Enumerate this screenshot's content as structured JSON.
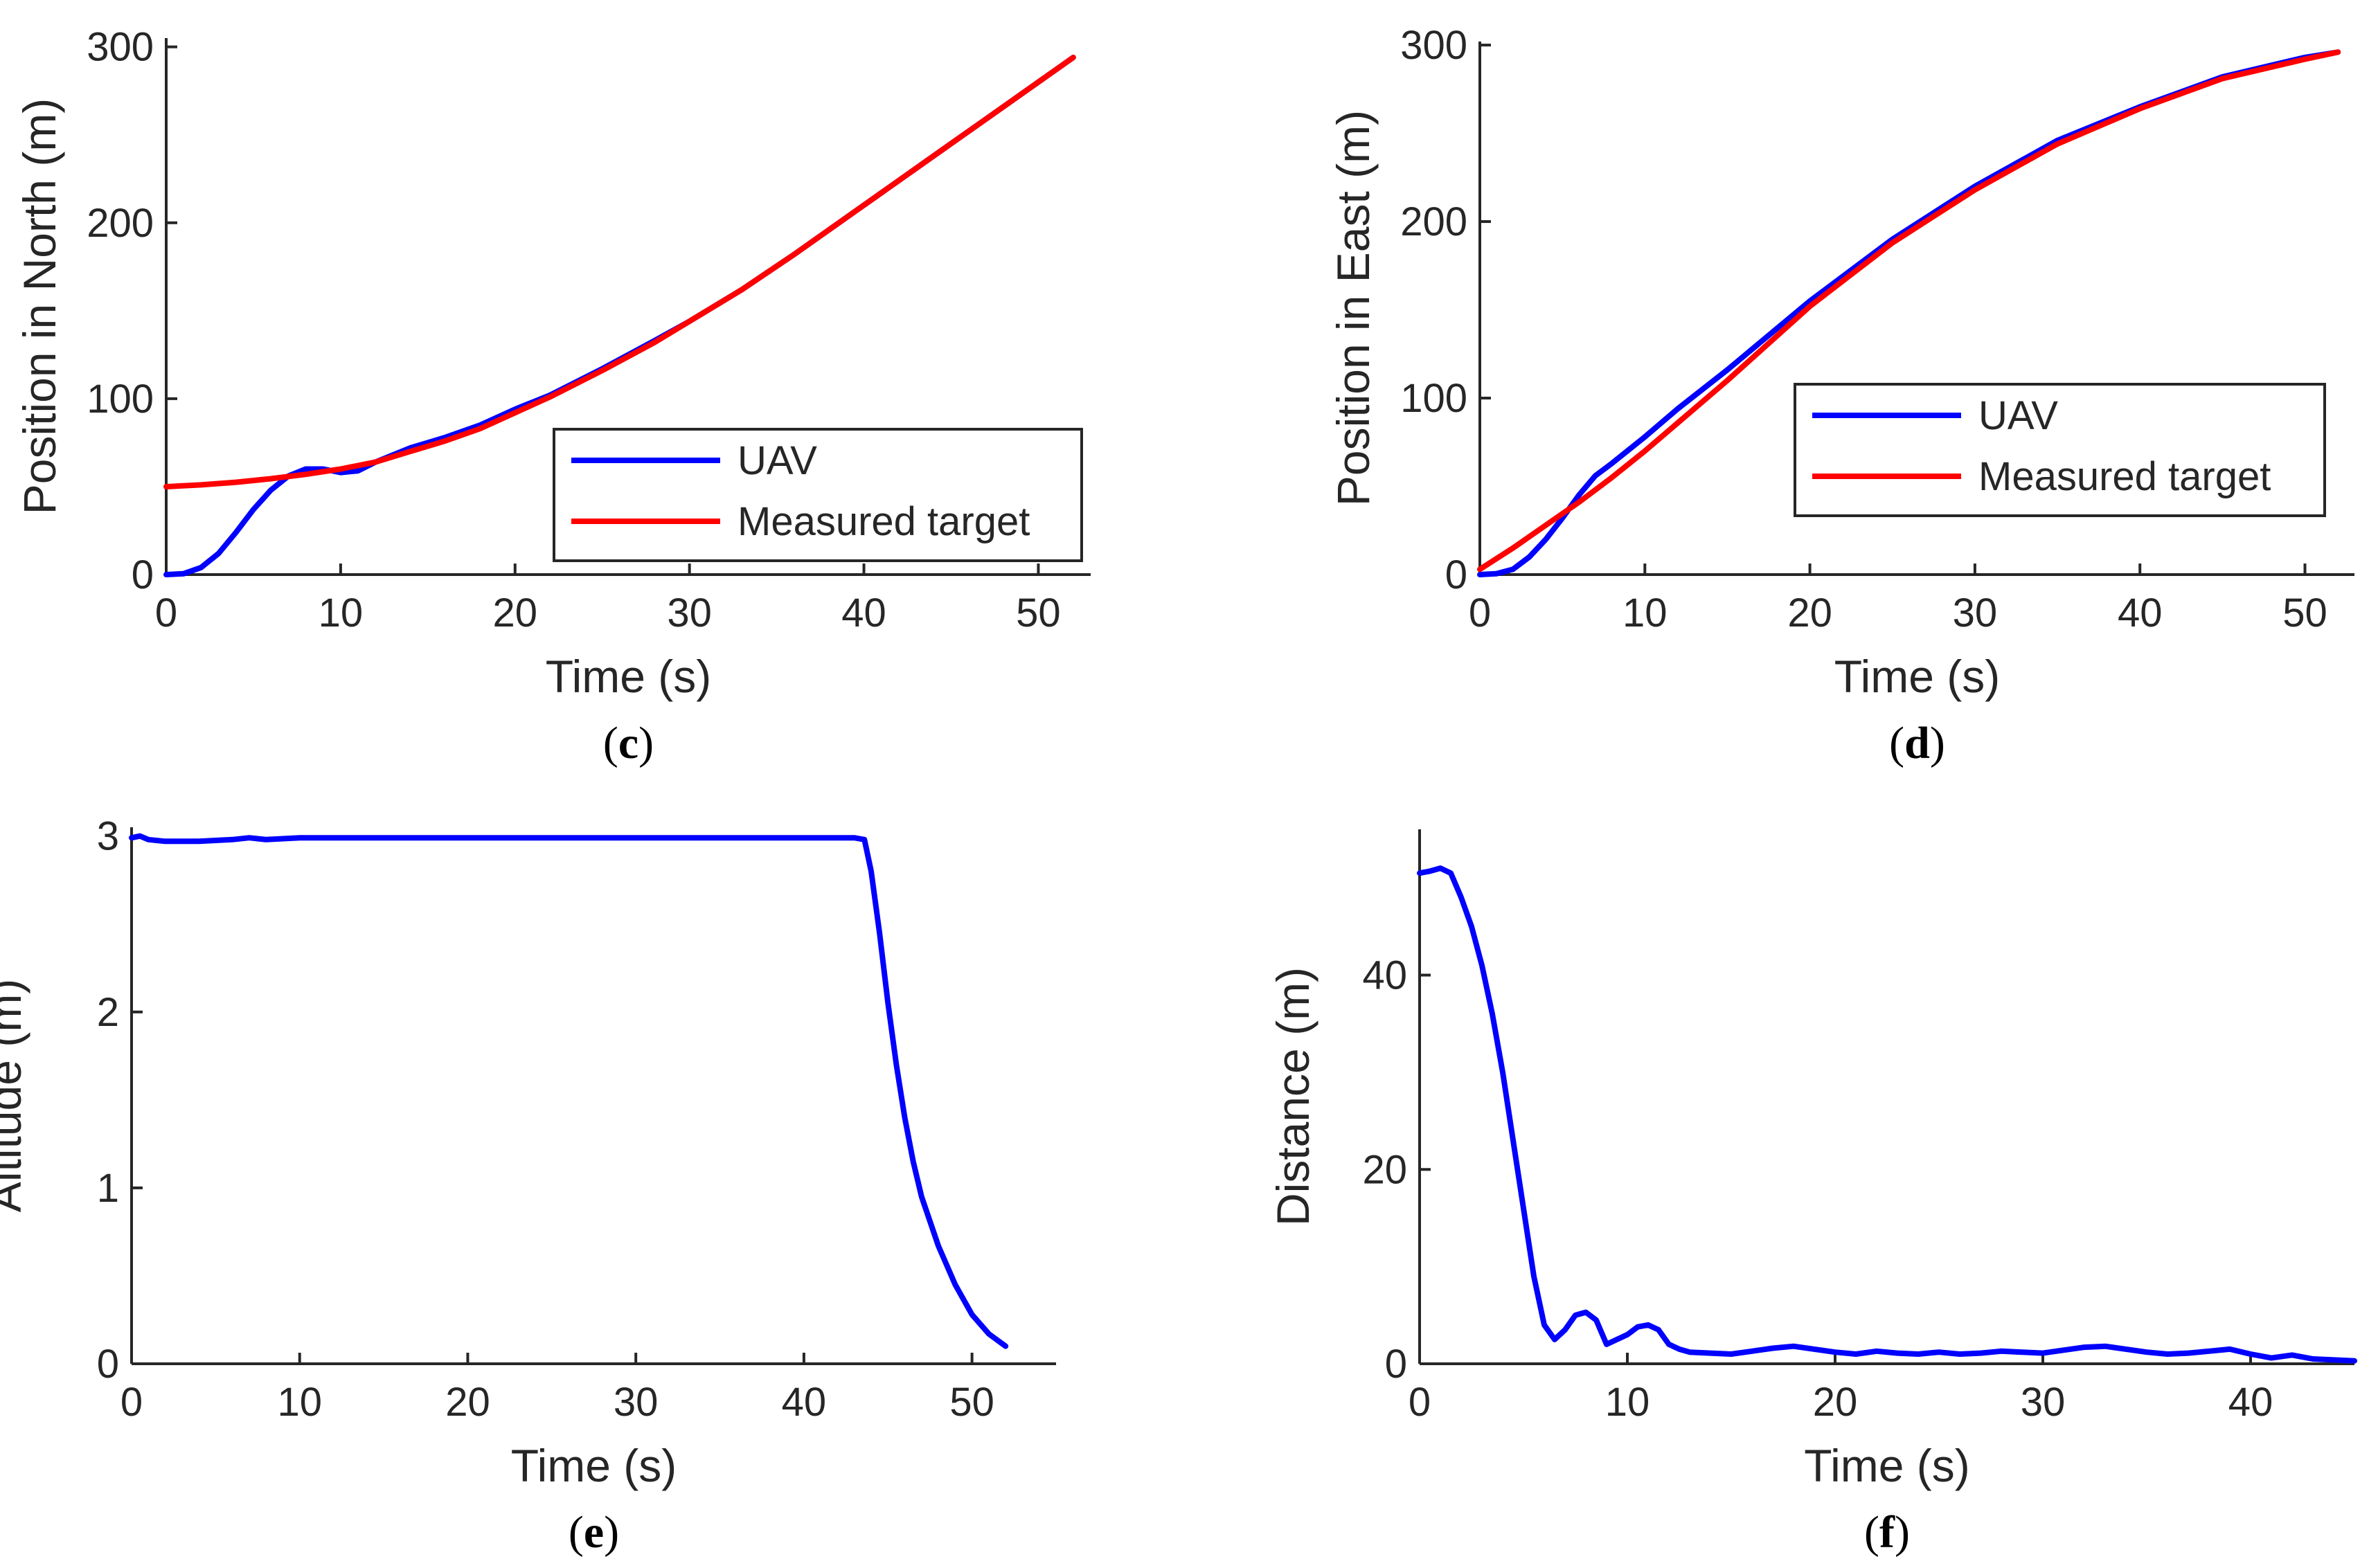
{
  "colors": {
    "uav": "#0000ff",
    "target": "#ff0000",
    "axis": "#262626"
  },
  "chart_data": [
    {
      "id": "c",
      "type": "line",
      "panel_label": "c",
      "xlabel": "Time (s)",
      "ylabel": "Position in North (m)",
      "xlim": [
        0,
        53
      ],
      "ylim": [
        0,
        305
      ],
      "xticks": [
        0,
        10,
        20,
        30,
        40,
        50
      ],
      "yticks": [
        0,
        100,
        200,
        300
      ],
      "legend": {
        "position": "bottom-right",
        "entries": [
          "UAV",
          "Measured target"
        ]
      },
      "series": [
        {
          "name": "UAV",
          "color": "#0000ff",
          "x": [
            0,
            1,
            2,
            3,
            4,
            5,
            6,
            7,
            8,
            9,
            10,
            11,
            12,
            14,
            16,
            18,
            20,
            22,
            25,
            28,
            30,
            33,
            36,
            40,
            44,
            48,
            52
          ],
          "y": [
            0,
            0.5,
            4,
            12,
            24,
            37,
            48,
            56,
            60,
            60,
            58,
            59,
            64,
            72,
            78,
            85,
            94,
            102,
            117,
            133,
            144,
            162,
            182,
            210,
            238,
            266,
            294
          ]
        },
        {
          "name": "Measured target",
          "color": "#ff0000",
          "x": [
            0,
            2,
            4,
            6,
            8,
            10,
            12,
            14,
            16,
            18,
            20,
            22,
            25,
            28,
            30,
            33,
            36,
            40,
            44,
            48,
            52
          ],
          "y": [
            50,
            51,
            52.5,
            54.5,
            57,
            60,
            64,
            70,
            76,
            83,
            92,
            101,
            116,
            132,
            144,
            162,
            182,
            210,
            238,
            266,
            294
          ]
        }
      ]
    },
    {
      "id": "d",
      "type": "line",
      "panel_label": "d",
      "xlabel": "Time (s)",
      "ylabel": "Position in East (m)",
      "xlim": [
        0,
        53
      ],
      "ylim": [
        0,
        302
      ],
      "xticks": [
        0,
        10,
        20,
        30,
        40,
        50
      ],
      "yticks": [
        0,
        100,
        200,
        300
      ],
      "legend": {
        "position": "bottom-right",
        "entries": [
          "UAV",
          "Measured target"
        ]
      },
      "series": [
        {
          "name": "UAV",
          "color": "#0000ff",
          "x": [
            0,
            1,
            2,
            3,
            4,
            5,
            6,
            7,
            8,
            10,
            12,
            15,
            20,
            25,
            30,
            35,
            40,
            45,
            50,
            52
          ],
          "y": [
            0,
            0.5,
            3,
            10,
            20,
            32,
            45,
            56,
            63,
            78,
            94,
            116,
            155,
            190,
            220,
            246,
            265,
            282,
            293,
            296
          ]
        },
        {
          "name": "Measured target",
          "color": "#ff0000",
          "x": [
            0,
            2,
            4,
            6,
            8,
            10,
            12,
            15,
            20,
            25,
            30,
            35,
            40,
            45,
            50,
            52
          ],
          "y": [
            3,
            15,
            28,
            41,
            55,
            70,
            86,
            110,
            152,
            188,
            218,
            244,
            264,
            281,
            292,
            296
          ]
        }
      ]
    },
    {
      "id": "e",
      "type": "line",
      "panel_label": "e",
      "xlabel": "Time (s)",
      "ylabel": "Altitude (m)",
      "xlim": [
        0,
        55
      ],
      "ylim": [
        0,
        3.05
      ],
      "xticks": [
        0,
        10,
        20,
        30,
        40,
        50
      ],
      "yticks": [
        0,
        1,
        2,
        3
      ],
      "series": [
        {
          "name": "UAV",
          "color": "#0000ff",
          "x": [
            0,
            0.5,
            1,
            2,
            4,
            6,
            7,
            8,
            10,
            12,
            20,
            30,
            40,
            43,
            43.6,
            44,
            44.5,
            45,
            45.5,
            46,
            46.5,
            47,
            48,
            49,
            50,
            51,
            52
          ],
          "y": [
            2.99,
            3.0,
            2.98,
            2.97,
            2.97,
            2.98,
            2.99,
            2.98,
            2.99,
            2.99,
            2.99,
            2.99,
            2.99,
            2.99,
            2.98,
            2.8,
            2.45,
            2.05,
            1.7,
            1.4,
            1.15,
            0.95,
            0.67,
            0.45,
            0.28,
            0.17,
            0.1
          ]
        }
      ]
    },
    {
      "id": "f",
      "type": "line",
      "panel_label": "f",
      "xlabel": "Time (s)",
      "ylabel": "Distance (m)",
      "xlim": [
        0,
        45
      ],
      "ylim": [
        0,
        55
      ],
      "xticks": [
        0,
        10,
        20,
        30,
        40
      ],
      "yticks": [
        0,
        20,
        40
      ],
      "series": [
        {
          "name": "Distance",
          "color": "#0000ff",
          "x": [
            0,
            0.5,
            1,
            1.5,
            2,
            2.5,
            3,
            3.5,
            4,
            4.5,
            5,
            5.5,
            6,
            6.5,
            7,
            7.5,
            8,
            8.5,
            9,
            9.5,
            10,
            10.5,
            11,
            11.5,
            12,
            12.5,
            13,
            14,
            15,
            16,
            17,
            18,
            19,
            20,
            21,
            22,
            23,
            24,
            25,
            26,
            27,
            28,
            29,
            30,
            31,
            32,
            33,
            34,
            35,
            36,
            37,
            38,
            39,
            40,
            41,
            42,
            43,
            44,
            45
          ],
          "y": [
            50.5,
            50.7,
            51,
            50.5,
            48,
            45,
            41,
            36,
            30,
            23,
            16,
            9,
            4,
            2.5,
            3.5,
            5,
            5.3,
            4.5,
            2,
            2.5,
            3,
            3.8,
            4,
            3.5,
            2,
            1.5,
            1.2,
            1.1,
            1.0,
            1.3,
            1.6,
            1.8,
            1.5,
            1.2,
            1.0,
            1.3,
            1.1,
            1.0,
            1.2,
            1.0,
            1.1,
            1.3,
            1.2,
            1.1,
            1.4,
            1.7,
            1.8,
            1.5,
            1.2,
            1.0,
            1.1,
            1.3,
            1.5,
            1.0,
            0.6,
            0.9,
            0.5,
            0.4,
            0.3
          ]
        }
      ]
    }
  ]
}
